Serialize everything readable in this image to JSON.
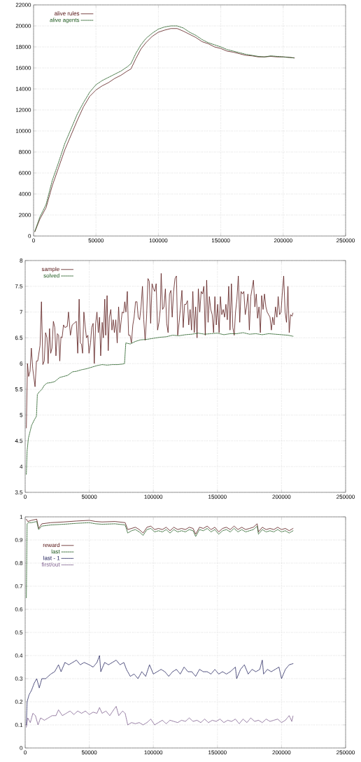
{
  "chart_data": [
    {
      "type": "line",
      "xlim": [
        0,
        250000
      ],
      "ylim": [
        0,
        22000
      ],
      "xticks": [
        0,
        50000,
        100000,
        150000,
        200000,
        250000
      ],
      "yticks": [
        0,
        2000,
        4000,
        6000,
        8000,
        10000,
        12000,
        14000,
        16000,
        18000,
        20000,
        22000
      ],
      "grid": true,
      "legend": "top left",
      "series": [
        {
          "name": "alive rules",
          "color": "#5a1a1a",
          "line_style": "solid",
          "x": [
            1000,
            5000,
            10000,
            15000,
            20000,
            25000,
            30000,
            35000,
            40000,
            45000,
            50000,
            55000,
            60000,
            65000,
            70000,
            75000,
            78000,
            82000,
            86000,
            90000,
            95000,
            100000,
            105000,
            110000,
            115000,
            120000,
            125000,
            130000,
            135000,
            140000,
            145000,
            150000,
            155000,
            160000,
            165000,
            170000,
            175000,
            180000,
            185000,
            190000,
            195000,
            200000,
            205000,
            209000
          ],
          "values": [
            400,
            1600,
            2700,
            4800,
            6500,
            8200,
            9600,
            11000,
            12300,
            13300,
            13900,
            14300,
            14600,
            15000,
            15300,
            15700,
            15900,
            16900,
            17800,
            18400,
            19000,
            19400,
            19600,
            19750,
            19750,
            19500,
            19200,
            18900,
            18500,
            18300,
            18000,
            17850,
            17600,
            17500,
            17350,
            17200,
            17150,
            17050,
            17050,
            17100,
            17050,
            17050,
            17000,
            16950
          ]
        },
        {
          "name": "alive agents",
          "color": "#1f5a1f",
          "line_style": "dashed",
          "x": [
            1000,
            5000,
            10000,
            15000,
            20000,
            25000,
            30000,
            35000,
            40000,
            45000,
            50000,
            55000,
            60000,
            65000,
            70000,
            75000,
            78000,
            82000,
            86000,
            90000,
            95000,
            100000,
            105000,
            110000,
            115000,
            120000,
            125000,
            130000,
            135000,
            140000,
            145000,
            150000,
            155000,
            160000,
            165000,
            170000,
            175000,
            180000,
            185000,
            190000,
            195000,
            200000,
            205000,
            209000
          ],
          "values": [
            450,
            1800,
            3000,
            5300,
            7000,
            8800,
            10200,
            11600,
            12700,
            13700,
            14400,
            14800,
            15100,
            15400,
            15700,
            16100,
            16400,
            17400,
            18200,
            18800,
            19300,
            19700,
            19900,
            20000,
            20000,
            19800,
            19400,
            19100,
            18700,
            18400,
            18200,
            18000,
            17750,
            17600,
            17450,
            17300,
            17200,
            17100,
            17050,
            17150,
            17100,
            17050,
            17000,
            16950
          ]
        }
      ]
    },
    {
      "type": "line",
      "xlim": [
        0,
        250000
      ],
      "ylim": [
        3.5,
        8
      ],
      "xticks": [
        0,
        50000,
        100000,
        150000,
        200000,
        250000
      ],
      "yticks": [
        3.5,
        4,
        4.5,
        5,
        5.5,
        6,
        6.5,
        7,
        7.5,
        8
      ],
      "grid": true,
      "legend": "top left",
      "series": [
        {
          "name": "sample",
          "color": "#5a1a1a",
          "line_style": "solid",
          "x": [
            900,
            1800,
            2700,
            3800,
            4800,
            5900,
            7700,
            8800,
            9800,
            11600,
            12700,
            13800,
            14900,
            15900,
            17000,
            17900,
            19000,
            19900,
            20900,
            22000,
            23100,
            24000,
            25100,
            26100,
            27000,
            27900,
            28800,
            29900,
            31000,
            32800,
            33800,
            35300,
            36700,
            38100,
            39900,
            41000,
            42100,
            43000,
            43900,
            44800,
            45800,
            46700,
            47800,
            48900,
            49800,
            51000,
            51900,
            53000,
            53900,
            55000,
            56000,
            57100,
            58000,
            58900,
            60100,
            61000,
            62100,
            62800,
            63900,
            64800,
            65700,
            66800,
            67700,
            68700,
            69600,
            70700,
            71800,
            72900,
            73900,
            75000,
            75700,
            76800,
            77700,
            78600,
            79700,
            80700,
            81800,
            82900,
            84000,
            85000,
            86100,
            87200,
            88200,
            89300,
            90400,
            91500,
            92500,
            93600,
            94700,
            95800,
            96800,
            97900,
            99000,
            100100,
            101100,
            102200,
            103300,
            104400,
            105400,
            106100,
            107200,
            108300,
            109400,
            110400,
            111500,
            112600,
            113700,
            114700,
            115800,
            116900,
            118000,
            119000,
            120100,
            121200,
            122300,
            123300,
            124400,
            125500,
            126600,
            127600,
            128700,
            129800,
            130800,
            131900,
            133000,
            134100,
            135100,
            136200,
            137300,
            138400,
            139400,
            140500,
            141600,
            142700,
            143700,
            144800,
            145900,
            147000,
            148000,
            149100,
            150200,
            151300,
            152300,
            153400,
            154500,
            155600,
            156600,
            157700,
            158800,
            159800,
            160900,
            162000,
            163100,
            164100,
            165200,
            166300,
            167400,
            168400,
            169500,
            170600,
            171700,
            172700,
            173800,
            174900,
            176000,
            177000,
            178100,
            179200,
            180300,
            181300,
            182400,
            183500,
            184500,
            185600,
            186700,
            187800,
            188800,
            189900,
            191000,
            192100,
            193100,
            194200,
            195300,
            196400,
            197400,
            198500,
            199600,
            200700,
            201700,
            202800,
            203900,
            205000,
            206000,
            207100,
            208200,
            208900
          ],
          "values": [
            4.75,
            6.0,
            5.75,
            5.85,
            6.3,
            5.9,
            5.55,
            6.05,
            6.05,
            6.35,
            7.2,
            5.98,
            6.05,
            6.6,
            6.5,
            6.0,
            6.68,
            6.2,
            6.3,
            6.82,
            6.7,
            6.15,
            6.58,
            6.55,
            6.05,
            6.52,
            6.5,
            6.75,
            6.7,
            6.72,
            7.0,
            6.55,
            6.75,
            6.78,
            6.82,
            6.2,
            7.25,
            6.4,
            6.38,
            6.2,
            7.0,
            6.75,
            6.5,
            6.55,
            6.2,
            6.4,
            6.7,
            6.78,
            6.0,
            6.78,
            7.0,
            6.6,
            6.9,
            6.15,
            6.8,
            6.5,
            7.25,
            6.55,
            7.32,
            6.25,
            6.9,
            7.05,
            6.65,
            6.85,
            6.6,
            6.85,
            6.4,
            7.1,
            6.6,
            6.85,
            7.0,
            6.98,
            7.2,
            7.0,
            7.4,
            6.55,
            6.55,
            6.4,
            6.75,
            6.9,
            7.2,
            7.2,
            6.9,
            6.85,
            7.1,
            7.5,
            6.85,
            6.45,
            6.9,
            7.65,
            7.6,
            6.78,
            7.55,
            7.45,
            7.4,
            7.55,
            6.65,
            6.8,
            7.05,
            7.75,
            7.05,
            7.1,
            7.45,
            6.78,
            6.6,
            7.35,
            7.42,
            6.9,
            7.4,
            7.65,
            7.7,
            6.55,
            6.8,
            7.1,
            7.42,
            6.7,
            7.15,
            7.15,
            7.22,
            6.75,
            7.05,
            6.65,
            7.4,
            6.6,
            7.1,
            6.5,
            7.45,
            7.0,
            7.4,
            7.35,
            7.5,
            6.55,
            7.62,
            6.8,
            7.3,
            7.05,
            6.95,
            6.6,
            7.3,
            6.75,
            7.15,
            6.6,
            7.3,
            6.95,
            7.05,
            6.9,
            7.15,
            6.85,
            7.5,
            6.65,
            7.55,
            6.7,
            6.55,
            7.0,
            7.25,
            7.7,
            6.8,
            7.4,
            7.35,
            7.4,
            6.95,
            7.1,
            7.35,
            6.65,
            7.3,
            7.45,
            7.62,
            7.1,
            7.35,
            6.88,
            7.1,
            6.6,
            7.32,
            7.05,
            7.35,
            7.1,
            7.0,
            6.95,
            6.9,
            6.65,
            6.9,
            6.75,
            7.1,
            6.9,
            7.3,
            6.95,
            7.0,
            7.4,
            7.7,
            7.0,
            6.8,
            7.5,
            6.6,
            6.95,
            6.92,
            6.98
          ]
        },
        {
          "name": "solved",
          "color": "#1f5a1f",
          "line_style": "dashed",
          "x": [
            900,
            1500,
            2500,
            4000,
            5000,
            7000,
            8800,
            9500,
            11000,
            13000,
            15000,
            17000,
            20000,
            23000,
            27000,
            30000,
            33000,
            37000,
            40000,
            44000,
            48000,
            52000,
            56000,
            60000,
            64000,
            68000,
            72000,
            76000,
            77500,
            78500,
            82000,
            86000,
            90000,
            95000,
            100000,
            105000,
            110000,
            115000,
            120000,
            125000,
            130000,
            135000,
            140000,
            145000,
            150000,
            155000,
            160000,
            165000,
            170000,
            175000,
            180000,
            185000,
            190000,
            195000,
            200000,
            205000,
            209000
          ],
          "values": [
            3.85,
            4.3,
            4.55,
            4.7,
            4.8,
            4.9,
            4.98,
            5.4,
            5.45,
            5.5,
            5.58,
            5.62,
            5.63,
            5.65,
            5.73,
            5.75,
            5.77,
            5.84,
            5.85,
            5.88,
            5.9,
            5.93,
            5.96,
            5.98,
            5.97,
            5.98,
            5.98,
            5.99,
            6.0,
            6.4,
            6.38,
            6.43,
            6.46,
            6.47,
            6.49,
            6.51,
            6.52,
            6.55,
            6.54,
            6.56,
            6.57,
            6.59,
            6.57,
            6.58,
            6.59,
            6.56,
            6.58,
            6.58,
            6.6,
            6.57,
            6.58,
            6.56,
            6.58,
            6.57,
            6.56,
            6.55,
            6.53
          ]
        }
      ]
    },
    {
      "type": "line",
      "xlim": [
        0,
        250000
      ],
      "ylim": [
        0,
        1
      ],
      "xticks": [
        0,
        50000,
        100000,
        150000,
        200000,
        250000
      ],
      "yticks": [
        0,
        0.1,
        0.2,
        0.3,
        0.4,
        0.5,
        0.6,
        0.7,
        0.8,
        0.9,
        1
      ],
      "grid": true,
      "legend": "top left",
      "series": [
        {
          "name": "reward",
          "color": "#5a1a1a",
          "line_style": "solid",
          "x": [
            900,
            2000,
            5000,
            9000,
            10500,
            13000,
            20000,
            30000,
            40000,
            50000,
            55000,
            60000,
            70000,
            78000,
            80000,
            83000,
            86000,
            89000,
            92000,
            95000,
            98000,
            101000,
            104000,
            107000,
            110000,
            113000,
            116000,
            119000,
            122000,
            125000,
            128000,
            131000,
            133000,
            136000,
            139000,
            142000,
            145000,
            148000,
            151000,
            154000,
            157000,
            160000,
            163000,
            166000,
            169000,
            172000,
            175000,
            178000,
            181000,
            182000,
            185000,
            188000,
            191000,
            194000,
            197000,
            200000,
            203000,
            206000,
            209000
          ],
          "values": [
            0.99,
            0.98,
            0.985,
            0.99,
            0.95,
            0.97,
            0.975,
            0.978,
            0.982,
            0.985,
            0.98,
            0.978,
            0.98,
            0.975,
            0.945,
            0.95,
            0.955,
            0.945,
            0.93,
            0.955,
            0.96,
            0.945,
            0.95,
            0.945,
            0.955,
            0.94,
            0.955,
            0.945,
            0.95,
            0.945,
            0.955,
            0.95,
            0.925,
            0.955,
            0.95,
            0.96,
            0.945,
            0.955,
            0.935,
            0.95,
            0.955,
            0.945,
            0.96,
            0.945,
            0.955,
            0.945,
            0.95,
            0.955,
            0.97,
            0.935,
            0.955,
            0.945,
            0.95,
            0.945,
            0.955,
            0.945,
            0.95,
            0.94,
            0.95
          ]
        },
        {
          "name": "last",
          "color": "#1f5a1f",
          "line_style": "dashed",
          "x": [
            900,
            1500,
            2500,
            5000,
            9000,
            10500,
            13000,
            20000,
            30000,
            40000,
            50000,
            55000,
            60000,
            70000,
            78000,
            80000,
            83000,
            86000,
            89000,
            92000,
            95000,
            98000,
            101000,
            104000,
            107000,
            110000,
            113000,
            116000,
            119000,
            122000,
            125000,
            128000,
            131000,
            133000,
            136000,
            139000,
            142000,
            145000,
            148000,
            151000,
            154000,
            157000,
            160000,
            163000,
            166000,
            169000,
            172000,
            175000,
            178000,
            181000,
            182000,
            185000,
            188000,
            191000,
            194000,
            197000,
            200000,
            203000,
            206000,
            209000
          ],
          "values": [
            0.65,
            0.97,
            0.975,
            0.975,
            0.98,
            0.945,
            0.96,
            0.965,
            0.968,
            0.972,
            0.975,
            0.97,
            0.968,
            0.97,
            0.965,
            0.93,
            0.94,
            0.945,
            0.935,
            0.92,
            0.945,
            0.95,
            0.935,
            0.94,
            0.935,
            0.945,
            0.93,
            0.945,
            0.935,
            0.94,
            0.935,
            0.945,
            0.94,
            0.915,
            0.945,
            0.94,
            0.95,
            0.935,
            0.945,
            0.925,
            0.94,
            0.945,
            0.935,
            0.95,
            0.935,
            0.945,
            0.935,
            0.94,
            0.945,
            0.96,
            0.925,
            0.945,
            0.935,
            0.94,
            0.935,
            0.945,
            0.935,
            0.94,
            0.93,
            0.94
          ]
        },
        {
          "name": "last - 1",
          "color": "#20205a",
          "line_style": "dotted",
          "x": [
            900,
            1500,
            3000,
            5000,
            7000,
            9000,
            11000,
            13000,
            16000,
            20000,
            23000,
            26000,
            28000,
            31000,
            34000,
            37000,
            40000,
            43000,
            46000,
            50000,
            53000,
            56000,
            58000,
            59000,
            62000,
            65000,
            68000,
            71000,
            74000,
            77000,
            79000,
            82000,
            85000,
            88000,
            91000,
            94000,
            97000,
            100000,
            103000,
            106000,
            109000,
            112000,
            115000,
            118000,
            121000,
            124000,
            127000,
            130000,
            133000,
            136000,
            139000,
            142000,
            145000,
            148000,
            151000,
            154000,
            157000,
            160000,
            164000,
            165000,
            168000,
            171000,
            174000,
            177000,
            180000,
            183000,
            185000,
            186000,
            189000,
            192000,
            195000,
            198000,
            200000,
            203000,
            206000,
            209000
          ],
          "values": [
            0.1,
            0.2,
            0.23,
            0.25,
            0.28,
            0.3,
            0.26,
            0.3,
            0.3,
            0.32,
            0.33,
            0.36,
            0.33,
            0.37,
            0.36,
            0.37,
            0.38,
            0.36,
            0.37,
            0.36,
            0.35,
            0.37,
            0.4,
            0.33,
            0.37,
            0.36,
            0.37,
            0.38,
            0.36,
            0.37,
            0.34,
            0.31,
            0.32,
            0.3,
            0.33,
            0.31,
            0.36,
            0.32,
            0.33,
            0.34,
            0.33,
            0.31,
            0.33,
            0.34,
            0.32,
            0.35,
            0.33,
            0.33,
            0.31,
            0.34,
            0.33,
            0.33,
            0.32,
            0.34,
            0.32,
            0.33,
            0.32,
            0.33,
            0.35,
            0.3,
            0.34,
            0.36,
            0.32,
            0.34,
            0.33,
            0.34,
            0.38,
            0.32,
            0.34,
            0.33,
            0.34,
            0.35,
            0.3,
            0.34,
            0.36,
            0.365
          ]
        },
        {
          "name": "first/out",
          "color": "#7a5a8a",
          "line_style": "dotted",
          "x": [
            900,
            2000,
            4000,
            6000,
            8000,
            10000,
            12000,
            15000,
            18000,
            21000,
            24000,
            26000,
            29000,
            32000,
            35000,
            38000,
            41000,
            44000,
            47000,
            50000,
            53000,
            56000,
            58000,
            60000,
            63000,
            66000,
            69000,
            71000,
            73000,
            76000,
            78000,
            80000,
            83000,
            86000,
            89000,
            92000,
            95000,
            98000,
            101000,
            104000,
            107000,
            110000,
            113000,
            116000,
            119000,
            122000,
            125000,
            128000,
            131000,
            134000,
            137000,
            140000,
            143000,
            146000,
            149000,
            152000,
            155000,
            158000,
            161000,
            164000,
            167000,
            170000,
            173000,
            176000,
            179000,
            182000,
            185000,
            188000,
            191000,
            194000,
            197000,
            200000,
            203000,
            206000,
            208000,
            209000
          ],
          "values": [
            0.09,
            0.13,
            0.11,
            0.15,
            0.14,
            0.1,
            0.13,
            0.12,
            0.13,
            0.14,
            0.14,
            0.165,
            0.14,
            0.15,
            0.16,
            0.145,
            0.16,
            0.15,
            0.16,
            0.145,
            0.155,
            0.15,
            0.175,
            0.15,
            0.16,
            0.14,
            0.165,
            0.18,
            0.14,
            0.16,
            0.15,
            0.1,
            0.11,
            0.105,
            0.11,
            0.1,
            0.11,
            0.125,
            0.1,
            0.11,
            0.12,
            0.105,
            0.12,
            0.115,
            0.11,
            0.12,
            0.115,
            0.13,
            0.115,
            0.12,
            0.11,
            0.125,
            0.11,
            0.12,
            0.115,
            0.125,
            0.11,
            0.12,
            0.115,
            0.125,
            0.105,
            0.125,
            0.11,
            0.13,
            0.115,
            0.12,
            0.11,
            0.125,
            0.115,
            0.12,
            0.125,
            0.11,
            0.12,
            0.14,
            0.115,
            0.14
          ]
        }
      ]
    }
  ]
}
